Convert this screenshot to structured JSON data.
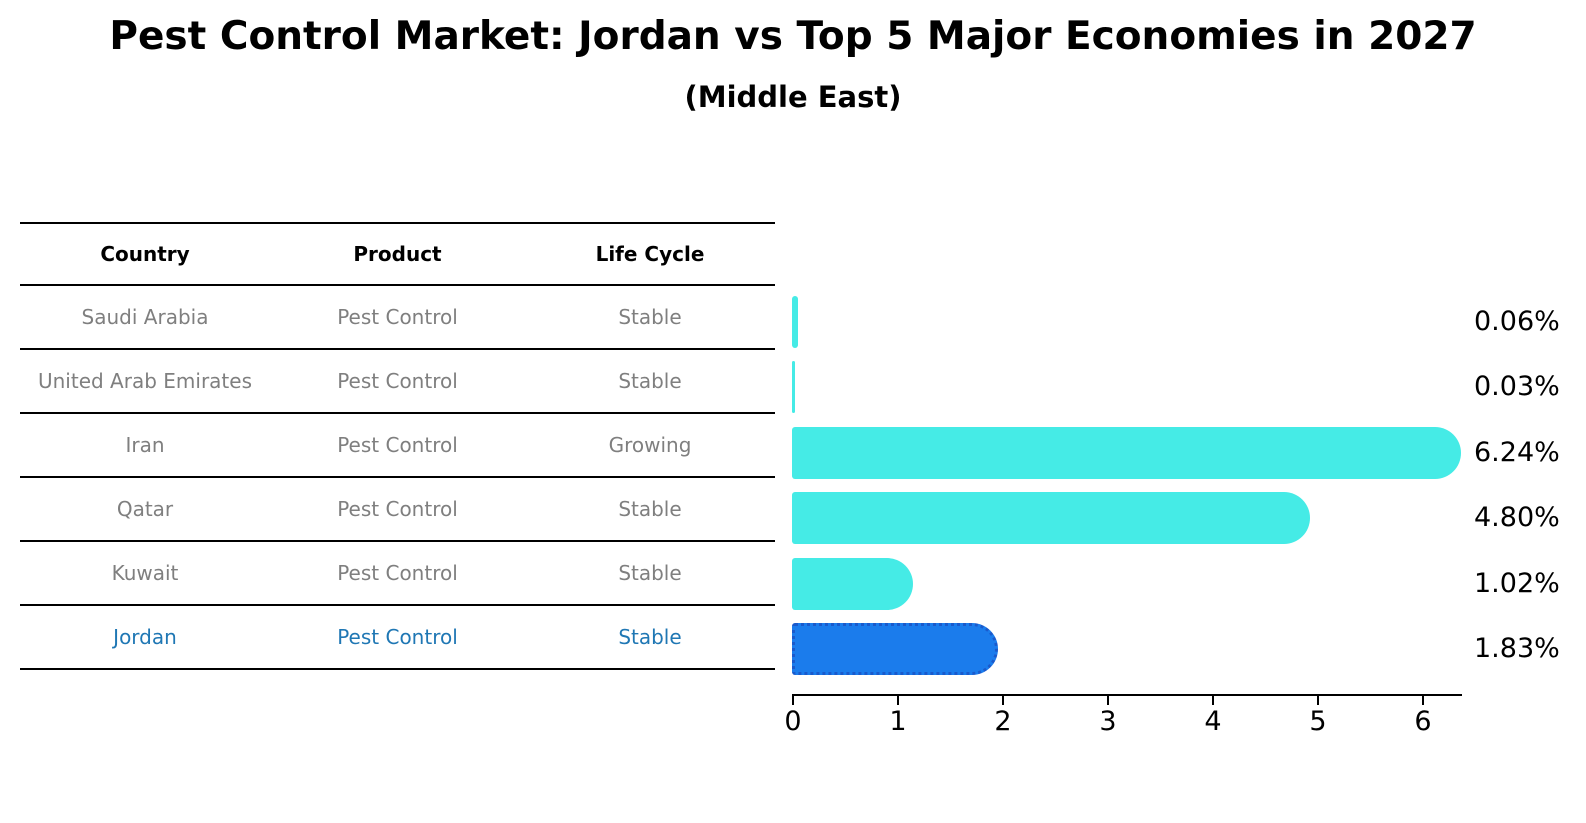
{
  "title": "Pest Control Market: Jordan vs Top 5 Major Economies in 2027",
  "subtitle": "(Middle East)",
  "table": {
    "headers": {
      "country": "Country",
      "product": "Product",
      "life_cycle": "Life Cycle"
    },
    "rows": [
      {
        "country": "Saudi Arabia",
        "product": "Pest Control",
        "life_cycle": "Stable"
      },
      {
        "country": "United Arab Emirates",
        "product": "Pest Control",
        "life_cycle": "Stable"
      },
      {
        "country": "Iran",
        "product": "Pest Control",
        "life_cycle": "Growing"
      },
      {
        "country": "Qatar",
        "product": "Pest Control",
        "life_cycle": "Stable"
      },
      {
        "country": "Kuwait",
        "product": "Pest Control",
        "life_cycle": "Stable"
      },
      {
        "country": "Jordan",
        "product": "Pest Control",
        "life_cycle": "Stable"
      }
    ]
  },
  "chart_data": {
    "type": "bar",
    "orientation": "horizontal",
    "title": "Pest Control Market: Jordan vs Top 5 Major Economies in 2027",
    "subtitle": "(Middle East)",
    "categories": [
      "Saudi Arabia",
      "United Arab Emirates",
      "Iran",
      "Qatar",
      "Kuwait",
      "Jordan"
    ],
    "values": [
      0.06,
      0.03,
      6.24,
      4.8,
      1.02,
      1.83
    ],
    "value_labels": [
      "0.06%",
      "0.03%",
      "6.24%",
      "4.80%",
      "1.02%",
      "1.83%"
    ],
    "x_ticks": [
      "0",
      "1",
      "2",
      "3",
      "4",
      "5",
      "6"
    ],
    "xlim": [
      0,
      6.4
    ],
    "grid": false,
    "legend": false,
    "highlight_category": "Jordan"
  },
  "colors": {
    "bar_default": "#45ebe6",
    "bar_highlight": "#1b7cec",
    "bar_highlight_border": "#1a5acc",
    "highlight_text": "#1f77b4",
    "table_text": "#7f7f7f",
    "heading_text": "#000000",
    "axis": "#000000"
  }
}
